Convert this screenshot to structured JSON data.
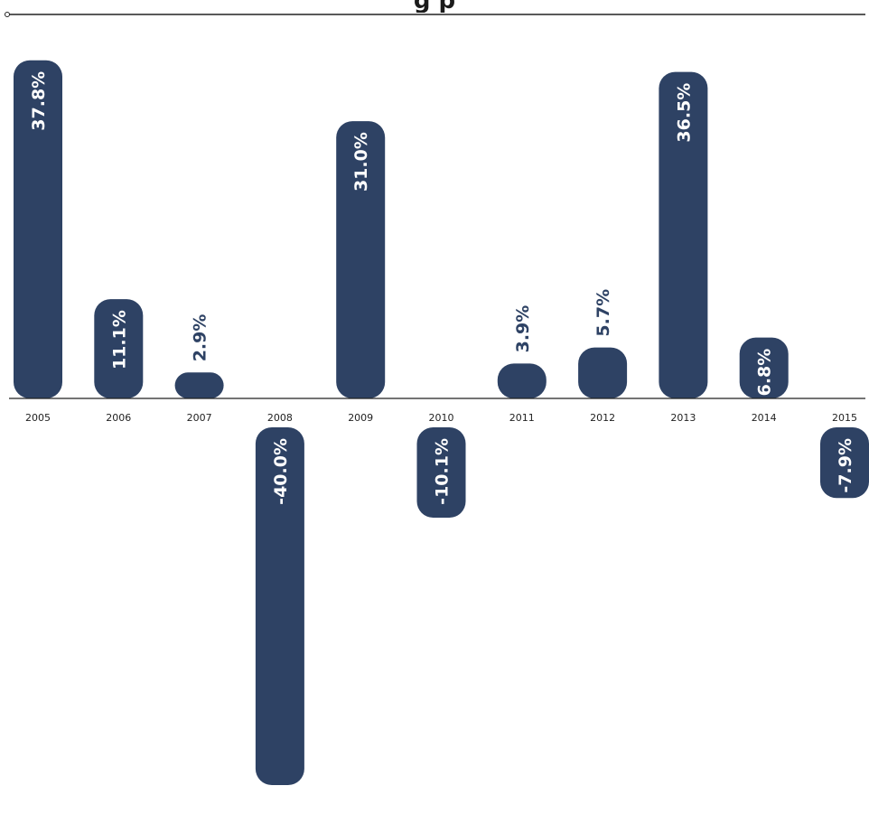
{
  "title": "g   p",
  "colors": {
    "bar": "#2e4264",
    "label_inside": "#ffffff",
    "label_outside": "#2e4264",
    "axis": "#222222"
  },
  "chart_data": {
    "type": "bar",
    "title": "",
    "xlabel": "",
    "ylabel": "",
    "categories": [
      "2005",
      "2006",
      "2007",
      "2008",
      "2009",
      "2010",
      "2011",
      "2012",
      "2013",
      "2014",
      "2015"
    ],
    "values": [
      37.8,
      11.1,
      2.9,
      -40.0,
      31.0,
      -10.1,
      3.9,
      5.7,
      36.5,
      6.8,
      -7.9
    ],
    "value_labels": [
      "37.8%",
      "11.1%",
      "2.9%",
      "-40.0%",
      "31.0%",
      "-10.1%",
      "3.9%",
      "5.7%",
      "36.5%",
      "6.8%",
      "-7.9%"
    ],
    "ylim": [
      -43,
      40
    ],
    "grid": false,
    "legend": "none"
  }
}
